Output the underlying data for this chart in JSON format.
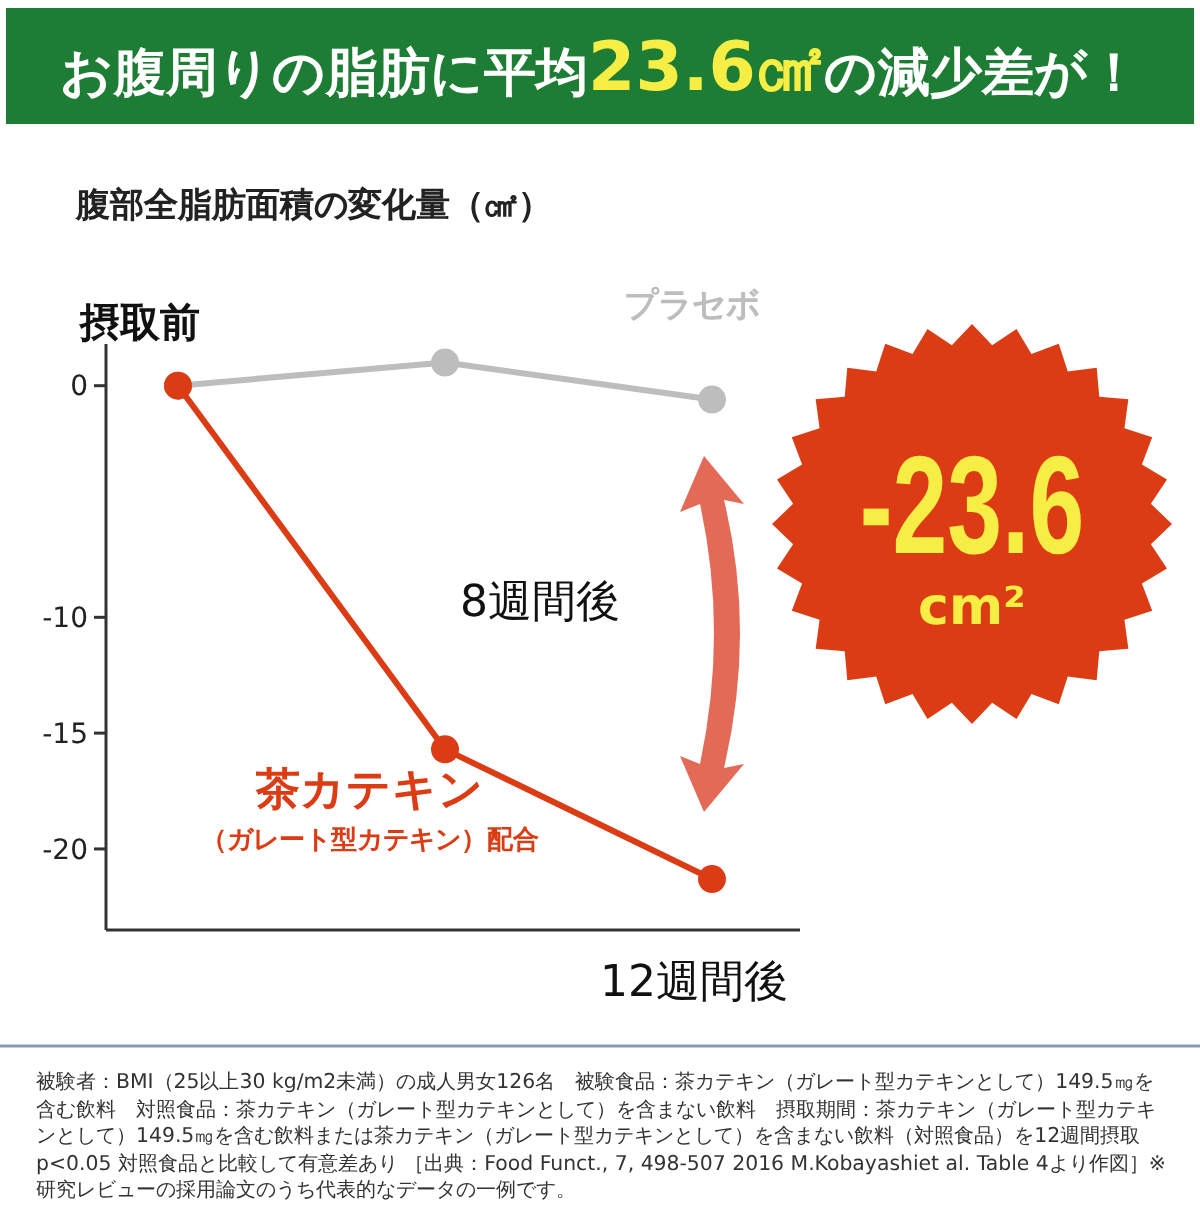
{
  "chart_data": {
    "type": "line",
    "title": "お腹周りの脂肪に平均23.6㎠の減少差が！",
    "ylabel": "腹部全脂肪面積の変化量（㎠）",
    "categories": [
      "摂取前",
      "8週間後",
      "12週間後"
    ],
    "series": [
      {
        "name": "プラセボ",
        "color": "#bdbdbd",
        "values": [
          0,
          1.0,
          -0.6
        ]
      },
      {
        "name": "茶カテキン",
        "color": "#dc3c14",
        "values": [
          0,
          -15.7,
          -21.3
        ]
      }
    ],
    "ylim": [
      -23.5,
      1.8
    ],
    "yticks": [
      0,
      -10,
      -15,
      -20
    ],
    "grid": false,
    "marker": "circle",
    "line_style": "solid",
    "annotations": [
      "（ガレート型カテキン）配合",
      "-23.6 cm²",
      "被験者：BMI（25以上30 kg/m2未満）の成人男女126名　被験食品：茶カテキン（ガレート型カテキンとして）149.5㎎を含む飲料　対照食品：茶カテキン（ガレート型カテキンとして）を含まない飲料　摂取期間：茶カテキン（ガレート型カテキンとして）149.5㎎を含む飲料または茶カテキン（ガレート型カテキンとして）を含まない飲料（対照食品）を12週間摂取 p<0.05 対照食品と比較して有意差あり ［出典：Food Funct., 7, 498-507 2016 M.Kobayashiet al. Table 4より作図］※研究レビューの採用論文のうち代表的なデータの一例です。"
    ]
  }
}
